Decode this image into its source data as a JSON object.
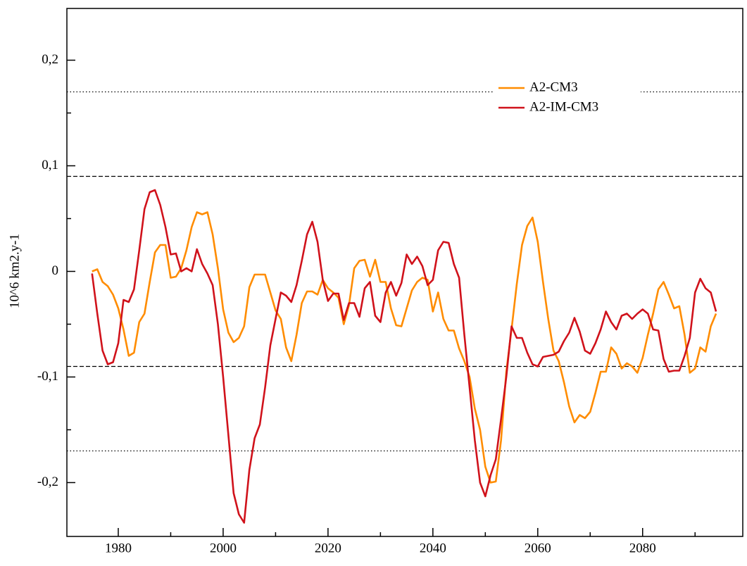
{
  "chart_data": {
    "type": "line",
    "y_label": "10^6 km2.y-1",
    "x": [
      1975,
      1976,
      1977,
      1978,
      1979,
      1980,
      1981,
      1982,
      1983,
      1984,
      1985,
      1986,
      1987,
      1988,
      1989,
      1990,
      1991,
      1992,
      1993,
      1994,
      1995,
      1996,
      1997,
      1998,
      1999,
      2000,
      2001,
      2002,
      2003,
      2004,
      2005,
      2006,
      2007,
      2008,
      2009,
      2010,
      2011,
      2012,
      2013,
      2014,
      2015,
      2016,
      2017,
      2018,
      2019,
      2020,
      2021,
      2022,
      2023,
      2024,
      2025,
      2026,
      2027,
      2028,
      2029,
      2030,
      2031,
      2032,
      2033,
      2034,
      2035,
      2036,
      2037,
      2038,
      2039,
      2040,
      2041,
      2042,
      2043,
      2044,
      2045,
      2046,
      2047,
      2048,
      2049,
      2050,
      2051,
      2052,
      2053,
      2054,
      2055,
      2056,
      2057,
      2058,
      2059,
      2060,
      2061,
      2062,
      2063,
      2064,
      2065,
      2066,
      2067,
      2068,
      2069,
      2070,
      2071,
      2072,
      2073,
      2074,
      2075,
      2076,
      2077,
      2078,
      2079,
      2080,
      2081,
      2082,
      2083,
      2084,
      2085,
      2086,
      2087,
      2088,
      2089,
      2090,
      2091,
      2092,
      2093,
      2094
    ],
    "series": [
      {
        "name": "A2-CM3",
        "color": "#ff8c00",
        "values": [
          0,
          0.002,
          -0.01,
          -0.014,
          -0.022,
          -0.035,
          -0.055,
          -0.08,
          -0.077,
          -0.048,
          -0.04,
          -0.01,
          0.018,
          0.025,
          0.025,
          -0.006,
          -0.005,
          0.003,
          0.02,
          0.042,
          0.056,
          0.054,
          0.056,
          0.035,
          0.003,
          -0.036,
          -0.058,
          -0.067,
          -0.063,
          -0.052,
          -0.015,
          -0.003,
          -0.003,
          -0.003,
          -0.02,
          -0.037,
          -0.045,
          -0.072,
          -0.085,
          -0.06,
          -0.03,
          -0.019,
          -0.019,
          -0.022,
          -0.008,
          -0.016,
          -0.02,
          -0.025,
          -0.05,
          -0.032,
          0.003,
          0.01,
          0.011,
          -0.005,
          0.011,
          -0.01,
          -0.01,
          -0.035,
          -0.051,
          -0.052,
          -0.035,
          -0.018,
          -0.01,
          -0.006,
          -0.008,
          -0.038,
          -0.02,
          -0.045,
          -0.056,
          -0.056,
          -0.073,
          -0.085,
          -0.1,
          -0.13,
          -0.15,
          -0.185,
          -0.2,
          -0.199,
          -0.16,
          -0.095,
          -0.055,
          -0.012,
          0.025,
          0.043,
          0.051,
          0.028,
          -0.01,
          -0.045,
          -0.075,
          -0.085,
          -0.105,
          -0.128,
          -0.143,
          -0.136,
          -0.139,
          -0.133,
          -0.115,
          -0.095,
          -0.095,
          -0.072,
          -0.078,
          -0.092,
          -0.087,
          -0.09,
          -0.096,
          -0.082,
          -0.06,
          -0.04,
          -0.017,
          -0.01,
          -0.022,
          -0.035,
          -0.033,
          -0.06,
          -0.096,
          -0.092,
          -0.072,
          -0.076,
          -0.052,
          -0.04
        ]
      },
      {
        "name": "A2-IM-CM3",
        "color": "#d0121b",
        "values": [
          -0.002,
          -0.04,
          -0.075,
          -0.088,
          -0.086,
          -0.068,
          -0.027,
          -0.029,
          -0.017,
          0.02,
          0.059,
          0.075,
          0.077,
          0.063,
          0.042,
          0.016,
          0.017,
          0,
          0.003,
          0,
          0.021,
          0.007,
          -0.002,
          -0.013,
          -0.05,
          -0.1,
          -0.155,
          -0.21,
          -0.23,
          -0.238,
          -0.188,
          -0.158,
          -0.145,
          -0.11,
          -0.07,
          -0.045,
          -0.02,
          -0.023,
          -0.029,
          -0.013,
          0.01,
          0.035,
          0.047,
          0.028,
          -0.008,
          -0.028,
          -0.021,
          -0.021,
          -0.046,
          -0.03,
          -0.03,
          -0.043,
          -0.016,
          -0.01,
          -0.042,
          -0.048,
          -0.02,
          -0.01,
          -0.023,
          -0.011,
          0.016,
          0.007,
          0.014,
          0.005,
          -0.013,
          -0.008,
          0.02,
          0.028,
          0.027,
          0.007,
          -0.006,
          -0.06,
          -0.11,
          -0.16,
          -0.2,
          -0.213,
          -0.193,
          -0.178,
          -0.14,
          -0.1,
          -0.052,
          -0.063,
          -0.063,
          -0.077,
          -0.088,
          -0.09,
          -0.081,
          -0.08,
          -0.079,
          -0.076,
          -0.066,
          -0.058,
          -0.044,
          -0.057,
          -0.075,
          -0.078,
          -0.068,
          -0.055,
          -0.038,
          -0.048,
          -0.055,
          -0.042,
          -0.04,
          -0.045,
          -0.04,
          -0.036,
          -0.04,
          -0.055,
          -0.056,
          -0.083,
          -0.095,
          -0.094,
          -0.094,
          -0.08,
          -0.063,
          -0.02,
          -0.007,
          -0.016,
          -0.02,
          -0.038
        ]
      }
    ],
    "xlim": [
      1970.2,
      2099.1
    ],
    "ylim": [
      -0.251,
      0.249
    ],
    "xticks": [
      1980,
      2000,
      2020,
      2040,
      2060,
      2080
    ],
    "xminorticks": [
      1990,
      2010,
      2030,
      2050,
      2070,
      2090
    ],
    "yticks": [
      {
        "value": -0.2,
        "label": "-0,2"
      },
      {
        "value": -0.1,
        "label": "-0,1"
      },
      0,
      {
        "value": 0.1,
        "label": "0,1"
      },
      {
        "value": 0.2,
        "label": "0,2"
      }
    ],
    "yminorticks": [
      -0.15,
      -0.05,
      0.05,
      0.15
    ],
    "hlines": [
      {
        "value": 0.09,
        "style": "dashed"
      },
      {
        "value": -0.09,
        "style": "dashed"
      },
      {
        "value": 0.17,
        "style": "dotted"
      },
      {
        "value": -0.17,
        "style": "dotted"
      }
    ],
    "legend": "upper right"
  }
}
